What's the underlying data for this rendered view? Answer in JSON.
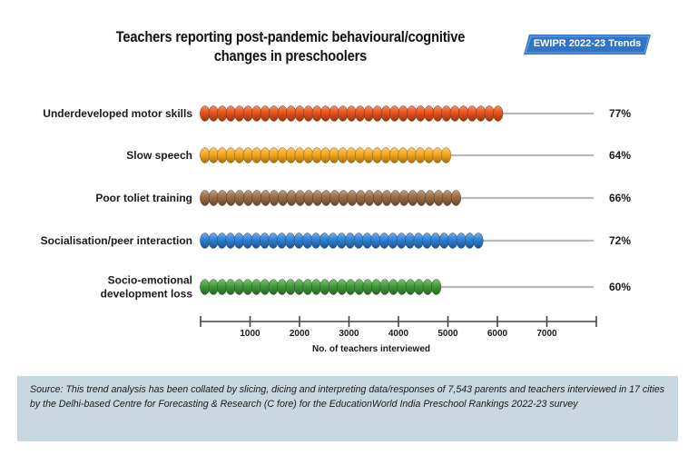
{
  "badge": {
    "text": "EWIPR 2022-23 Trends",
    "color": "#2f74c9"
  },
  "source": "Source: This trend analysis has been collated by slicing, dicing and interpreting data/responses of 7,543 parents and teachers interviewed in 17 cities by the Delhi-based Centre for Forecasting & Research (C fore) for the EducationWorld India Preschool Rankings 2022-23 survey",
  "chart_data": {
    "type": "bar",
    "orientation": "horizontal",
    "title_lines": [
      "Teachers reporting post-pandemic behavioural/cognitive",
      "changes in preschoolers"
    ],
    "categories": [
      [
        "Underdeveloped motor skills"
      ],
      [
        "Slow speech"
      ],
      [
        "Poor toliet training"
      ],
      [
        "Socialisation/peer interaction"
      ],
      [
        "Socio-emotional",
        "development loss"
      ]
    ],
    "values": [
      6100,
      5050,
      5250,
      5700,
      4850
    ],
    "percent_labels": [
      "77%",
      "64%",
      "66%",
      "72%",
      "60%"
    ],
    "colors": [
      "#e8531c",
      "#f5a81c",
      "#9b6b43",
      "#2d7fd6",
      "#3f9a36"
    ],
    "xlim": [
      0,
      8000
    ],
    "xticks": [
      1000,
      2000,
      3000,
      4000,
      5000,
      6000,
      7000
    ],
    "tick_labels": [
      "1000",
      "2000",
      "3000",
      "4000",
      "5000",
      "6000",
      "7000"
    ],
    "xlabel": "No. of teachers interviewed",
    "grid": false,
    "legend": "none"
  }
}
